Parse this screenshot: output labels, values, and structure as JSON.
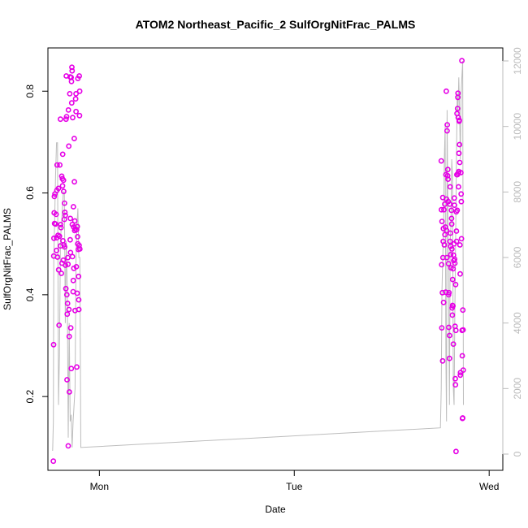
{
  "chart_data": {
    "type": "scatter",
    "title": "ATOM2 Northeast_Pacific_2 SulfOrgNitFrac_PALMS",
    "xlabel": "Date",
    "ylabel": "SulfOrgNitFrac_PALMS",
    "x_ticks": [
      {
        "label": "Mon",
        "day": 1.0
      },
      {
        "label": "Tue",
        "day": 2.0
      },
      {
        "label": "Wed",
        "day": 3.0
      }
    ],
    "xlim": [
      0.736,
      3.07
    ],
    "ylim": [
      0.055,
      0.885
    ],
    "y_ticks": [
      0.2,
      0.4,
      0.6,
      0.8
    ],
    "y2lim": [
      0,
      12000
    ],
    "y2_ticks": [
      0,
      2000,
      4000,
      6000,
      8000,
      10000,
      12000
    ],
    "grid": false,
    "colors": {
      "points": "#e600e6",
      "altitude_line": "#bdbdbd",
      "right_axis": "#bbbbbb"
    },
    "series": [
      {
        "values": [
          [
            0.764,
            0.073
          ],
          [
            0.765,
            0.302
          ],
          [
            0.766,
            0.476
          ],
          [
            0.767,
            0.511
          ],
          [
            0.768,
            0.561
          ],
          [
            0.769,
            0.593
          ],
          [
            0.77,
            0.54
          ],
          [
            0.772,
            0.598
          ],
          [
            0.775,
            0.539
          ],
          [
            0.778,
            0.558
          ],
          [
            0.78,
            0.487
          ],
          [
            0.781,
            0.512
          ],
          [
            0.782,
            0.605
          ],
          [
            0.783,
            0.655
          ],
          [
            0.785,
            0.474
          ],
          [
            0.788,
            0.517
          ],
          [
            0.79,
            0.609
          ],
          [
            0.791,
            0.449
          ],
          [
            0.793,
            0.34
          ],
          [
            0.795,
            0.515
          ],
          [
            0.797,
            0.655
          ],
          [
            0.8,
            0.745
          ],
          [
            0.8,
            0.496
          ],
          [
            0.802,
            0.538
          ],
          [
            0.803,
            0.532
          ],
          [
            0.805,
            0.442
          ],
          [
            0.807,
            0.633
          ],
          [
            0.808,
            0.462
          ],
          [
            0.81,
            0.628
          ],
          [
            0.811,
            0.614
          ],
          [
            0.812,
            0.676
          ],
          [
            0.813,
            0.506
          ],
          [
            0.815,
            0.468
          ],
          [
            0.816,
            0.625
          ],
          [
            0.817,
            0.603
          ],
          [
            0.818,
            0.498
          ],
          [
            0.82,
            0.548
          ],
          [
            0.821,
            0.58
          ],
          [
            0.822,
            0.494
          ],
          [
            0.823,
            0.562
          ],
          [
            0.825,
            0.556
          ],
          [
            0.826,
            0.458
          ],
          [
            0.828,
            0.412
          ],
          [
            0.829,
            0.745
          ],
          [
            0.83,
            0.83
          ],
          [
            0.832,
            0.75
          ],
          [
            0.833,
            0.4
          ],
          [
            0.834,
            0.233
          ],
          [
            0.835,
            0.362
          ],
          [
            0.837,
            0.383
          ],
          [
            0.838,
            0.473
          ],
          [
            0.839,
            0.46
          ],
          [
            0.84,
            0.103
          ],
          [
            0.841,
            0.763
          ],
          [
            0.843,
            0.692
          ],
          [
            0.844,
            0.371
          ],
          [
            0.845,
            0.318
          ],
          [
            0.846,
            0.209
          ],
          [
            0.848,
            0.795
          ],
          [
            0.85,
            0.828
          ],
          [
            0.85,
            0.508
          ],
          [
            0.851,
            0.55
          ],
          [
            0.852,
            0.483
          ],
          [
            0.853,
            0.335
          ],
          [
            0.855,
            0.827
          ],
          [
            0.856,
            0.255
          ],
          [
            0.857,
            0.819
          ],
          [
            0.858,
            0.777
          ],
          [
            0.859,
            0.847
          ],
          [
            0.86,
            0.84
          ],
          [
            0.861,
            0.538
          ],
          [
            0.862,
            0.475
          ],
          [
            0.863,
            0.748
          ],
          [
            0.865,
            0.406
          ],
          [
            0.866,
            0.428
          ],
          [
            0.867,
            0.573
          ],
          [
            0.868,
            0.533
          ],
          [
            0.869,
            0.452
          ],
          [
            0.871,
            0.707
          ],
          [
            0.872,
            0.622
          ],
          [
            0.873,
            0.526
          ],
          [
            0.874,
            0.545
          ],
          [
            0.875,
            0.369
          ],
          [
            0.876,
            0.529
          ],
          [
            0.878,
            0.785
          ],
          [
            0.88,
            0.795
          ],
          [
            0.88,
            0.76
          ],
          [
            0.882,
            0.455
          ],
          [
            0.883,
            0.528
          ],
          [
            0.884,
            0.258
          ],
          [
            0.886,
            0.403
          ],
          [
            0.887,
            0.534
          ],
          [
            0.888,
            0.514
          ],
          [
            0.889,
            0.5
          ],
          [
            0.89,
            0.825
          ],
          [
            0.892,
            0.489
          ],
          [
            0.893,
            0.436
          ],
          [
            0.894,
            0.39
          ],
          [
            0.895,
            0.371
          ],
          [
            0.896,
            0.497
          ],
          [
            0.897,
            0.83
          ],
          [
            0.898,
            0.752
          ],
          [
            0.899,
            0.8
          ],
          [
            0.9,
            0.49
          ],
          [
            2.754,
            0.663
          ],
          [
            2.755,
            0.567
          ],
          [
            2.756,
            0.459
          ],
          [
            2.757,
            0.335
          ],
          [
            2.758,
            0.544
          ],
          [
            2.76,
            0.404
          ],
          [
            2.761,
            0.27
          ],
          [
            2.762,
            0.591
          ],
          [
            2.763,
            0.473
          ],
          [
            2.764,
            0.505
          ],
          [
            2.765,
            0.53
          ],
          [
            2.766,
            0.385
          ],
          [
            2.768,
            0.567
          ],
          [
            2.77,
            0.498
          ],
          [
            2.772,
            0.578
          ],
          [
            2.773,
            0.518
          ],
          [
            2.775,
            0.533
          ],
          [
            2.777,
            0.405
          ],
          [
            2.778,
            0.636
          ],
          [
            2.78,
            0.8
          ],
          [
            2.781,
            0.588
          ],
          [
            2.782,
            0.526
          ],
          [
            2.783,
            0.473
          ],
          [
            2.784,
            0.722
          ],
          [
            2.785,
            0.734
          ],
          [
            2.787,
            0.634
          ],
          [
            2.788,
            0.646
          ],
          [
            2.789,
            0.627
          ],
          [
            2.79,
            0.583
          ],
          [
            2.791,
            0.461
          ],
          [
            2.792,
            0.4
          ],
          [
            2.793,
            0.336
          ],
          [
            2.794,
            0.404
          ],
          [
            2.796,
            0.275
          ],
          [
            2.797,
            0.32
          ],
          [
            2.798,
            0.578
          ],
          [
            2.799,
            0.505
          ],
          [
            2.8,
            0.612
          ],
          [
            2.801,
            0.521
          ],
          [
            2.802,
            0.495
          ],
          [
            2.803,
            0.479
          ],
          [
            2.804,
            0.453
          ],
          [
            2.806,
            0.566
          ],
          [
            2.807,
            0.55
          ],
          [
            2.808,
            0.539
          ],
          [
            2.809,
            0.49
          ],
          [
            2.81,
            0.374
          ],
          [
            2.811,
            0.36
          ],
          [
            2.812,
            0.379
          ],
          [
            2.813,
            0.43
          ],
          [
            2.814,
            0.378
          ],
          [
            2.815,
            0.451
          ],
          [
            2.816,
            0.303
          ],
          [
            2.817,
            0.478
          ],
          [
            2.818,
            0.467
          ],
          [
            2.82,
            0.5
          ],
          [
            2.821,
            0.59
          ],
          [
            2.822,
            0.576
          ],
          [
            2.823,
            0.47
          ],
          [
            2.824,
            0.462
          ],
          [
            2.825,
            0.338
          ],
          [
            2.826,
            0.235
          ],
          [
            2.827,
            0.223
          ],
          [
            2.828,
            0.42
          ],
          [
            2.829,
            0.33
          ],
          [
            2.83,
            0.092
          ],
          [
            2.831,
            0.563
          ],
          [
            2.832,
            0.525
          ],
          [
            2.833,
            0.505
          ],
          [
            2.834,
            0.636
          ],
          [
            2.835,
            0.756
          ],
          [
            2.836,
            0.566
          ],
          [
            2.837,
            0.636
          ],
          [
            2.838,
            0.766
          ],
          [
            2.839,
            0.788
          ],
          [
            2.84,
            0.796
          ],
          [
            2.841,
            0.748
          ],
          [
            2.842,
            0.639
          ],
          [
            2.843,
            0.612
          ],
          [
            2.844,
            0.642
          ],
          [
            2.845,
            0.678
          ],
          [
            2.846,
            0.741
          ],
          [
            2.847,
            0.743
          ],
          [
            2.848,
            0.695
          ],
          [
            2.849,
            0.66
          ],
          [
            2.85,
            0.498
          ],
          [
            2.851,
            0.441
          ],
          [
            2.852,
            0.242
          ],
          [
            2.853,
            0.247
          ],
          [
            2.855,
            0.64
          ],
          [
            2.856,
            0.598
          ],
          [
            2.857,
            0.583
          ],
          [
            2.858,
            0.51
          ],
          [
            2.86,
            0.86
          ],
          [
            2.861,
            0.33
          ],
          [
            2.862,
            0.28
          ],
          [
            2.863,
            0.157
          ],
          [
            2.864,
            0.158
          ],
          [
            2.865,
            0.37
          ],
          [
            2.866,
            0.331
          ],
          [
            2.867,
            0.252
          ]
        ]
      },
      {
        "axis": "right",
        "line": true,
        "values": [
          [
            0.76,
            100
          ],
          [
            0.764,
            1000
          ],
          [
            0.766,
            6000
          ],
          [
            0.77,
            7000
          ],
          [
            0.775,
            8500
          ],
          [
            0.78,
            9500
          ],
          [
            0.785,
            9500
          ],
          [
            0.79,
            1500
          ],
          [
            0.795,
            3000
          ],
          [
            0.8,
            6500
          ],
          [
            0.805,
            7000
          ],
          [
            0.81,
            7500
          ],
          [
            0.815,
            8000
          ],
          [
            0.82,
            8000
          ],
          [
            0.825,
            4000
          ],
          [
            0.83,
            6500
          ],
          [
            0.835,
            5000
          ],
          [
            0.84,
            500
          ],
          [
            0.845,
            4000
          ],
          [
            0.85,
            1000
          ],
          [
            0.855,
            1200
          ],
          [
            0.86,
            200
          ],
          [
            0.865,
            1000
          ],
          [
            0.87,
            1500
          ],
          [
            0.875,
            2000
          ],
          [
            0.88,
            6000
          ],
          [
            0.885,
            7000
          ],
          [
            0.89,
            7500
          ],
          [
            0.895,
            6000
          ],
          [
            0.9,
            6000
          ],
          [
            0.905,
            200
          ],
          [
            2.75,
            800
          ],
          [
            2.754,
            2000
          ],
          [
            2.758,
            5000
          ],
          [
            2.762,
            6000
          ],
          [
            2.766,
            7000
          ],
          [
            2.77,
            9000
          ],
          [
            2.774,
            10000
          ],
          [
            2.778,
            3000
          ],
          [
            2.781,
            1000
          ],
          [
            2.784,
            10500
          ],
          [
            2.788,
            7500
          ],
          [
            2.792,
            5000
          ],
          [
            2.796,
            1500
          ],
          [
            2.8,
            6500
          ],
          [
            2.804,
            7000
          ],
          [
            2.808,
            9000
          ],
          [
            2.812,
            8500
          ],
          [
            2.816,
            2000
          ],
          [
            2.82,
            1500
          ],
          [
            2.824,
            4500
          ],
          [
            2.828,
            6500
          ],
          [
            2.832,
            9000
          ],
          [
            2.836,
            11000
          ],
          [
            2.84,
            10500
          ],
          [
            2.844,
            11500
          ],
          [
            2.848,
            10500
          ],
          [
            2.852,
            9000
          ],
          [
            2.856,
            11000
          ],
          [
            2.86,
            11500
          ],
          [
            2.864,
            12000
          ],
          [
            2.868,
            1500
          ]
        ]
      }
    ]
  }
}
